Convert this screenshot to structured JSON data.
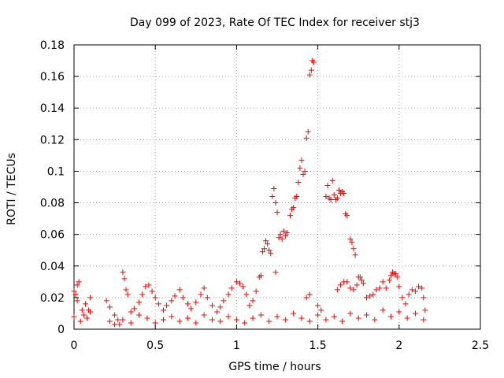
{
  "chart_data": {
    "type": "scatter",
    "title": "Day 099 of 2023, Rate Of TEC Index for receiver stj3",
    "xlabel": "GPS time / hours",
    "ylabel": "ROTI / TECUs",
    "xlim": [
      0,
      2.5
    ],
    "ylim": [
      0,
      0.18
    ],
    "xticks": [
      "0",
      "0.5",
      "1",
      "1.5",
      "2",
      "2.5"
    ],
    "yticks": [
      "0",
      "0.02",
      "0.04",
      "0.06",
      "0.08",
      "0.1",
      "0.12",
      "0.14",
      "0.16",
      "0.18"
    ],
    "grid": true,
    "marker": "+",
    "color": "#ff0000",
    "series": [
      {
        "name": "ROTI",
        "points": [
          [
            0.0,
            0.024
          ],
          [
            0.01,
            0.022
          ],
          [
            0.02,
            0.028
          ],
          [
            0.03,
            0.03
          ],
          [
            0.02,
            0.018
          ],
          [
            0.05,
            0.012
          ],
          [
            0.07,
            0.016
          ],
          [
            0.09,
            0.012
          ],
          [
            0.1,
            0.02
          ],
          [
            0.04,
            0.005
          ],
          [
            0.0,
            0.008
          ],
          [
            0.06,
            0.009
          ],
          [
            0.08,
            0.007
          ],
          [
            0.1,
            0.011
          ],
          [
            0.2,
            0.018
          ],
          [
            0.22,
            0.014
          ],
          [
            0.25,
            0.009
          ],
          [
            0.27,
            0.006
          ],
          [
            0.3,
            0.036
          ],
          [
            0.31,
            0.032
          ],
          [
            0.32,
            0.025
          ],
          [
            0.33,
            0.022
          ],
          [
            0.28,
            0.003
          ],
          [
            0.35,
            0.011
          ],
          [
            0.37,
            0.013
          ],
          [
            0.4,
            0.017
          ],
          [
            0.42,
            0.022
          ],
          [
            0.44,
            0.027
          ],
          [
            0.46,
            0.028
          ],
          [
            0.48,
            0.024
          ],
          [
            0.5,
            0.02
          ],
          [
            0.52,
            0.016
          ],
          [
            0.55,
            0.012
          ],
          [
            0.57,
            0.015
          ],
          [
            0.6,
            0.018
          ],
          [
            0.62,
            0.021
          ],
          [
            0.65,
            0.025
          ],
          [
            0.67,
            0.02
          ],
          [
            0.7,
            0.016
          ],
          [
            0.72,
            0.013
          ],
          [
            0.75,
            0.017
          ],
          [
            0.78,
            0.022
          ],
          [
            0.8,
            0.026
          ],
          [
            0.82,
            0.02
          ],
          [
            0.85,
            0.015
          ],
          [
            0.88,
            0.011
          ],
          [
            0.9,
            0.014
          ],
          [
            0.92,
            0.018
          ],
          [
            0.95,
            0.022
          ],
          [
            0.97,
            0.026
          ],
          [
            1.0,
            0.03
          ],
          [
            1.02,
            0.029
          ],
          [
            1.04,
            0.027
          ],
          [
            1.06,
            0.022
          ],
          [
            1.08,
            0.015
          ],
          [
            1.1,
            0.018
          ],
          [
            1.12,
            0.024
          ],
          [
            1.14,
            0.033
          ],
          [
            1.15,
            0.034
          ],
          [
            1.16,
            0.049
          ],
          [
            1.17,
            0.051
          ],
          [
            1.18,
            0.056
          ],
          [
            1.19,
            0.054
          ],
          [
            1.2,
            0.05
          ],
          [
            1.21,
            0.048
          ],
          [
            1.22,
            0.084
          ],
          [
            1.23,
            0.089
          ],
          [
            1.24,
            0.08
          ],
          [
            1.25,
            0.074
          ],
          [
            1.24,
            0.036
          ],
          [
            1.26,
            0.058
          ],
          [
            1.27,
            0.06
          ],
          [
            1.28,
            0.057
          ],
          [
            1.29,
            0.062
          ],
          [
            1.3,
            0.059
          ],
          [
            1.31,
            0.061
          ],
          [
            1.33,
            0.072
          ],
          [
            1.34,
            0.076
          ],
          [
            1.35,
            0.077
          ],
          [
            1.36,
            0.083
          ],
          [
            1.37,
            0.084
          ],
          [
            1.38,
            0.093
          ],
          [
            1.39,
            0.102
          ],
          [
            1.4,
            0.107
          ],
          [
            1.41,
            0.098
          ],
          [
            1.42,
            0.1
          ],
          [
            1.43,
            0.121
          ],
          [
            1.44,
            0.125
          ],
          [
            1.45,
            0.161
          ],
          [
            1.46,
            0.164
          ],
          [
            1.465,
            0.17
          ],
          [
            1.475,
            0.169
          ],
          [
            1.43,
            0.02
          ],
          [
            1.45,
            0.022
          ],
          [
            1.5,
            0.015
          ],
          [
            1.52,
            0.012
          ],
          [
            1.55,
            0.084
          ],
          [
            1.56,
            0.091
          ],
          [
            1.57,
            0.083
          ],
          [
            1.58,
            0.082
          ],
          [
            1.59,
            0.094
          ],
          [
            1.6,
            0.085
          ],
          [
            1.61,
            0.082
          ],
          [
            1.62,
            0.083
          ],
          [
            1.63,
            0.088
          ],
          [
            1.64,
            0.086
          ],
          [
            1.65,
            0.087
          ],
          [
            1.66,
            0.086
          ],
          [
            1.67,
            0.073
          ],
          [
            1.68,
            0.072
          ],
          [
            1.7,
            0.057
          ],
          [
            1.71,
            0.055
          ],
          [
            1.72,
            0.051
          ],
          [
            1.73,
            0.047
          ],
          [
            1.62,
            0.025
          ],
          [
            1.64,
            0.028
          ],
          [
            1.66,
            0.03
          ],
          [
            1.68,
            0.03
          ],
          [
            1.7,
            0.026
          ],
          [
            1.72,
            0.025
          ],
          [
            1.74,
            0.028
          ],
          [
            1.75,
            0.033
          ],
          [
            1.76,
            0.033
          ],
          [
            1.77,
            0.031
          ],
          [
            1.78,
            0.029
          ],
          [
            1.8,
            0.02
          ],
          [
            1.82,
            0.021
          ],
          [
            1.84,
            0.022
          ],
          [
            1.86,
            0.025
          ],
          [
            1.88,
            0.026
          ],
          [
            1.9,
            0.03
          ],
          [
            1.92,
            0.026
          ],
          [
            1.94,
            0.031
          ],
          [
            1.95,
            0.034
          ],
          [
            1.96,
            0.036
          ],
          [
            1.97,
            0.035
          ],
          [
            1.98,
            0.035
          ],
          [
            1.99,
            0.033
          ],
          [
            2.0,
            0.027
          ],
          [
            2.02,
            0.02
          ],
          [
            2.04,
            0.016
          ],
          [
            2.06,
            0.022
          ],
          [
            2.08,
            0.025
          ],
          [
            2.1,
            0.024
          ],
          [
            2.12,
            0.027
          ],
          [
            2.14,
            0.026
          ],
          [
            2.15,
            0.02
          ],
          [
            2.16,
            0.012
          ],
          [
            0.22,
            0.005
          ],
          [
            0.25,
            0.003
          ],
          [
            0.3,
            0.006
          ],
          [
            0.35,
            0.004
          ],
          [
            0.4,
            0.009
          ],
          [
            0.45,
            0.007
          ],
          [
            0.5,
            0.004
          ],
          [
            0.55,
            0.006
          ],
          [
            0.6,
            0.008
          ],
          [
            0.65,
            0.005
          ],
          [
            0.7,
            0.007
          ],
          [
            0.75,
            0.004
          ],
          [
            0.8,
            0.009
          ],
          [
            0.85,
            0.006
          ],
          [
            0.9,
            0.005
          ],
          [
            0.95,
            0.008
          ],
          [
            1.0,
            0.006
          ],
          [
            1.05,
            0.004
          ],
          [
            1.1,
            0.007
          ],
          [
            1.15,
            0.009
          ],
          [
            1.2,
            0.005
          ],
          [
            1.25,
            0.008
          ],
          [
            1.3,
            0.006
          ],
          [
            1.35,
            0.01
          ],
          [
            1.4,
            0.007
          ],
          [
            1.45,
            0.005
          ],
          [
            1.5,
            0.009
          ],
          [
            1.55,
            0.006
          ],
          [
            1.6,
            0.008
          ],
          [
            1.65,
            0.005
          ],
          [
            1.7,
            0.01
          ],
          [
            1.75,
            0.007
          ],
          [
            1.8,
            0.009
          ],
          [
            1.85,
            0.006
          ],
          [
            1.9,
            0.012
          ],
          [
            1.95,
            0.008
          ],
          [
            2.0,
            0.011
          ],
          [
            2.05,
            0.007
          ],
          [
            2.1,
            0.01
          ],
          [
            2.15,
            0.006
          ]
        ]
      }
    ]
  }
}
